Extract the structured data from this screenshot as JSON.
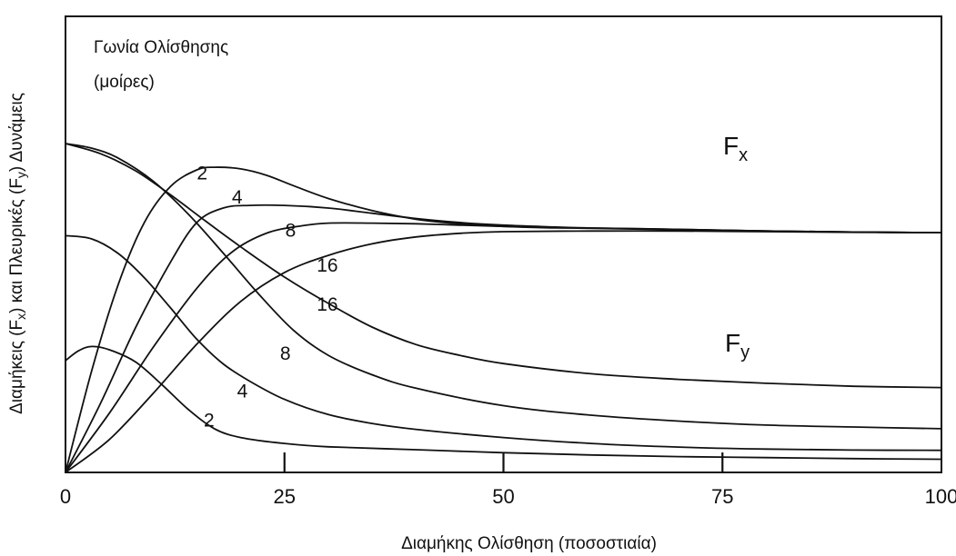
{
  "chart_data": {
    "type": "line",
    "title": "",
    "xlabel": "Διαμήκης Ολίσθηση (ποσοστιαία)",
    "ylabel": "Διαμήκεις (Fx) και Πλευρικές (Fy) Δυνάμεις",
    "ylabel_parts": {
      "before_x": "Διαμήκεις (F",
      "sub_x": "x",
      "middle": ") και Πλευρικές (F",
      "sub_y": "y",
      "after_y": ") Δυνάμεις"
    },
    "xlim": [
      0,
      100
    ],
    "ylim": [
      0,
      100
    ],
    "x_ticks": [
      0,
      25,
      50,
      75,
      100
    ],
    "x_tick_labels": [
      "0",
      "25",
      "50",
      "75",
      "100"
    ],
    "grid": false,
    "legend": {
      "title_line1": "Γωνία Ολίσθησης",
      "title_line2": "(μοίρες)",
      "placement": "top-left"
    },
    "family_labels": {
      "fx": {
        "main": "F",
        "sub": "x"
      },
      "fy": {
        "main": "F",
        "sub": "y"
      }
    },
    "series": [
      {
        "name": "Fx 2",
        "family": "Fx",
        "label": "2",
        "label_at": [
          15.6,
          89.1
        ],
        "points": [
          [
            0,
            0
          ],
          [
            3,
            31
          ],
          [
            6,
            57
          ],
          [
            9,
            76
          ],
          [
            12,
            87
          ],
          [
            15,
            92
          ],
          [
            17,
            92.8
          ],
          [
            20,
            92.3
          ],
          [
            23,
            90.3
          ],
          [
            26,
            87.2
          ],
          [
            30,
            83.3
          ],
          [
            35,
            79.6
          ],
          [
            40,
            77.0
          ],
          [
            45,
            75.6
          ],
          [
            50,
            74.8
          ],
          [
            55,
            74.4
          ],
          [
            60,
            74.3
          ],
          [
            70,
            73.9
          ],
          [
            80,
            73.4
          ],
          [
            90,
            73.1
          ],
          [
            100,
            72.9
          ]
        ]
      },
      {
        "name": "Fx 4",
        "family": "Fx",
        "label": "4",
        "label_at": [
          19.6,
          81.7
        ],
        "points": [
          [
            0,
            0
          ],
          [
            4,
            21
          ],
          [
            8,
            44
          ],
          [
            12,
            64
          ],
          [
            15,
            76
          ],
          [
            18,
            80.4
          ],
          [
            21,
            81.2
          ],
          [
            25,
            81.2
          ],
          [
            30,
            80.4
          ],
          [
            35,
            78.8
          ],
          [
            40,
            77.2
          ],
          [
            45,
            76.0
          ],
          [
            50,
            75.2
          ],
          [
            55,
            74.7
          ],
          [
            60,
            74.3
          ],
          [
            70,
            73.9
          ],
          [
            80,
            73.4
          ],
          [
            90,
            73.1
          ],
          [
            100,
            72.9
          ]
        ]
      },
      {
        "name": "Fx 8",
        "family": "Fx",
        "label": "8",
        "label_at": [
          25.7,
          71.7
        ],
        "points": [
          [
            0,
            0
          ],
          [
            5,
            18
          ],
          [
            10,
            38
          ],
          [
            15,
            56
          ],
          [
            19,
            67
          ],
          [
            23,
            72.8
          ],
          [
            27,
            75.0
          ],
          [
            30,
            75.8
          ],
          [
            35,
            75.8
          ],
          [
            40,
            75.6
          ],
          [
            45,
            75.2
          ],
          [
            50,
            74.8
          ],
          [
            55,
            74.5
          ],
          [
            60,
            74.2
          ],
          [
            70,
            73.8
          ],
          [
            80,
            73.4
          ],
          [
            90,
            73.1
          ],
          [
            100,
            72.9
          ]
        ]
      },
      {
        "name": "Fx 16",
        "family": "Fx",
        "label": "16",
        "label_at": [
          29.9,
          61.1
        ],
        "points": [
          [
            0,
            0
          ],
          [
            5,
            10
          ],
          [
            10,
            24
          ],
          [
            15,
            39
          ],
          [
            20,
            52
          ],
          [
            25,
            60.8
          ],
          [
            30,
            66.0
          ],
          [
            35,
            69.5
          ],
          [
            40,
            71.6
          ],
          [
            45,
            72.7
          ],
          [
            50,
            73.2
          ],
          [
            60,
            73.4
          ],
          [
            70,
            73.4
          ],
          [
            80,
            73.2
          ],
          [
            90,
            73.0
          ],
          [
            100,
            72.9
          ]
        ]
      },
      {
        "name": "Fy 2",
        "family": "Fy",
        "label": "2",
        "label_at": [
          16.4,
          13.9
        ],
        "points": [
          [
            0,
            34
          ],
          [
            1.5,
            37
          ],
          [
            3,
            38.3
          ],
          [
            5,
            37.3
          ],
          [
            8,
            33.6
          ],
          [
            11,
            26.7
          ],
          [
            14,
            19.2
          ],
          [
            17,
            13.3
          ],
          [
            20,
            10.6
          ],
          [
            25,
            8.8
          ],
          [
            30,
            7.8
          ],
          [
            40,
            6.9
          ],
          [
            50,
            6.0
          ],
          [
            60,
            5.3
          ],
          [
            70,
            4.8
          ],
          [
            80,
            4.5
          ],
          [
            90,
            4.2
          ],
          [
            100,
            4.0
          ]
        ]
      },
      {
        "name": "Fy 4",
        "family": "Fy",
        "label": "4",
        "label_at": [
          20.2,
          22.8
        ],
        "points": [
          [
            0,
            72
          ],
          [
            3,
            71.0
          ],
          [
            6,
            66.6
          ],
          [
            9,
            59.2
          ],
          [
            12,
            50.0
          ],
          [
            15,
            40.5
          ],
          [
            18,
            33.0
          ],
          [
            21,
            27.8
          ],
          [
            25,
            22.2
          ],
          [
            30,
            17.6
          ],
          [
            35,
            14.9
          ],
          [
            40,
            13.1
          ],
          [
            50,
            10.6
          ],
          [
            60,
            8.8
          ],
          [
            70,
            7.7
          ],
          [
            80,
            7.1
          ],
          [
            90,
            6.8
          ],
          [
            100,
            6.7
          ]
        ]
      },
      {
        "name": "Fy 8",
        "family": "Fy",
        "label": "8",
        "label_at": [
          25.1,
          34.2
        ],
        "points": [
          [
            0,
            100
          ],
          [
            3,
            98.6
          ],
          [
            6,
            95.6
          ],
          [
            10,
            88.6
          ],
          [
            14,
            78.6
          ],
          [
            18,
            66.7
          ],
          [
            22,
            54.4
          ],
          [
            26,
            43.3
          ],
          [
            30,
            35.6
          ],
          [
            35,
            29.7
          ],
          [
            40,
            25.6
          ],
          [
            50,
            20.3
          ],
          [
            60,
            17.4
          ],
          [
            70,
            15.6
          ],
          [
            80,
            14.4
          ],
          [
            90,
            13.8
          ],
          [
            100,
            13.3
          ]
        ]
      },
      {
        "name": "Fy 16",
        "family": "Fy",
        "label": "16",
        "label_at": [
          29.9,
          49.2
        ],
        "points": [
          [
            0,
            100
          ],
          [
            4,
            96.9
          ],
          [
            8,
            91.7
          ],
          [
            12,
            84.4
          ],
          [
            16,
            76.4
          ],
          [
            20,
            68.6
          ],
          [
            25,
            59.4
          ],
          [
            30,
            51.4
          ],
          [
            35,
            44.2
          ],
          [
            40,
            38.9
          ],
          [
            45,
            35.6
          ],
          [
            50,
            33.1
          ],
          [
            60,
            30.0
          ],
          [
            70,
            28.3
          ],
          [
            80,
            27.1
          ],
          [
            90,
            26.2
          ],
          [
            100,
            25.8
          ]
        ]
      }
    ]
  }
}
